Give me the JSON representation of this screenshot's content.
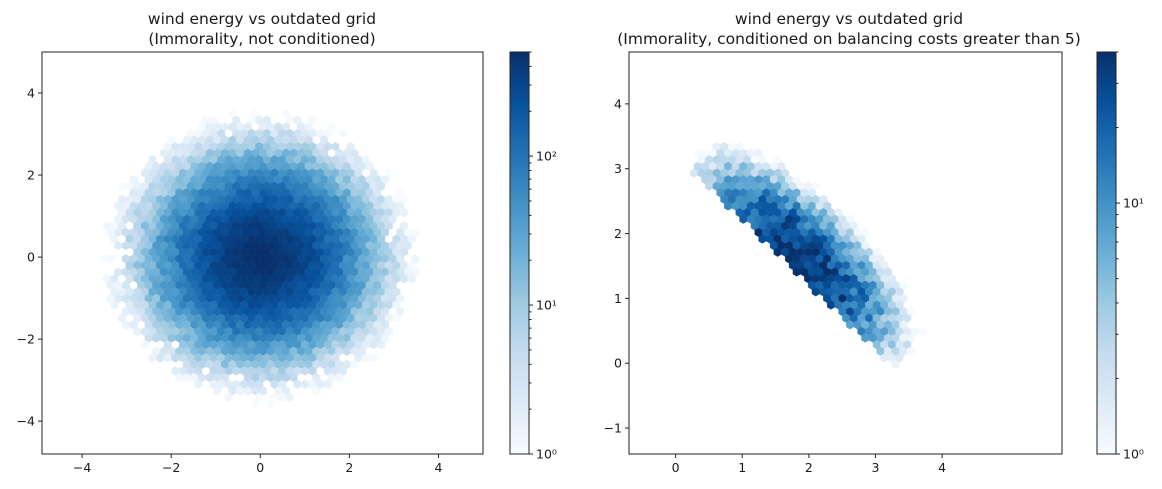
{
  "chart_data": [
    {
      "type": "heatmap",
      "subtype": "hexbin",
      "title_line1": "wind energy vs outdated grid",
      "title_line2": "(Immorality, not conditioned)",
      "xlim": [
        -4.9,
        5.0
      ],
      "ylim": [
        -4.8,
        5.0
      ],
      "xticks": [
        -4,
        -2,
        0,
        2,
        4
      ],
      "yticks": [
        -4,
        -2,
        0,
        2,
        4
      ],
      "xtick_labels": [
        "−4",
        "−2",
        "0",
        "2",
        "4"
      ],
      "ytick_labels": [
        "−4",
        "−2",
        "0",
        "2",
        "4"
      ],
      "colorscale": "Blues",
      "color_scale_type": "log",
      "colorbar_range": [
        1,
        500
      ],
      "colorbar_tick_labels": [
        "10⁰",
        "10¹",
        "10²"
      ],
      "distribution": {
        "shape": "bivariate normal",
        "center": [
          0.0,
          0.0
        ],
        "std": [
          1.0,
          1.0
        ],
        "correlation": 0.0,
        "peak_count": 500,
        "extent": [
          -4.5,
          4.6,
          -4.4,
          4.6
        ]
      }
    },
    {
      "type": "heatmap",
      "subtype": "hexbin",
      "title_line1": "wind energy vs outdated grid",
      "title_line2": "(Immorality, conditioned on balancing costs greater than 5)",
      "xlim": [
        -0.7,
        5.8
      ],
      "ylim": [
        -1.4,
        4.8
      ],
      "xticks": [
        0,
        1,
        2,
        3,
        4
      ],
      "yticks": [
        -1,
        0,
        1,
        2,
        3,
        4
      ],
      "xtick_labels": [
        "0",
        "1",
        "2",
        "3",
        "4"
      ],
      "ytick_labels": [
        "−1",
        "0",
        "1",
        "2",
        "3",
        "4"
      ],
      "colorscale": "Blues",
      "color_scale_type": "log",
      "colorbar_range": [
        1,
        40
      ],
      "colorbar_tick_labels": [
        "10⁰",
        "10¹"
      ],
      "distribution": {
        "shape": "truncated diagonal band",
        "constraint": "x + y > 3.2",
        "center": [
          1.8,
          1.5
        ],
        "peak_count": 40,
        "extent": [
          -0.5,
          4.5,
          -1.1,
          4.6
        ]
      }
    }
  ]
}
